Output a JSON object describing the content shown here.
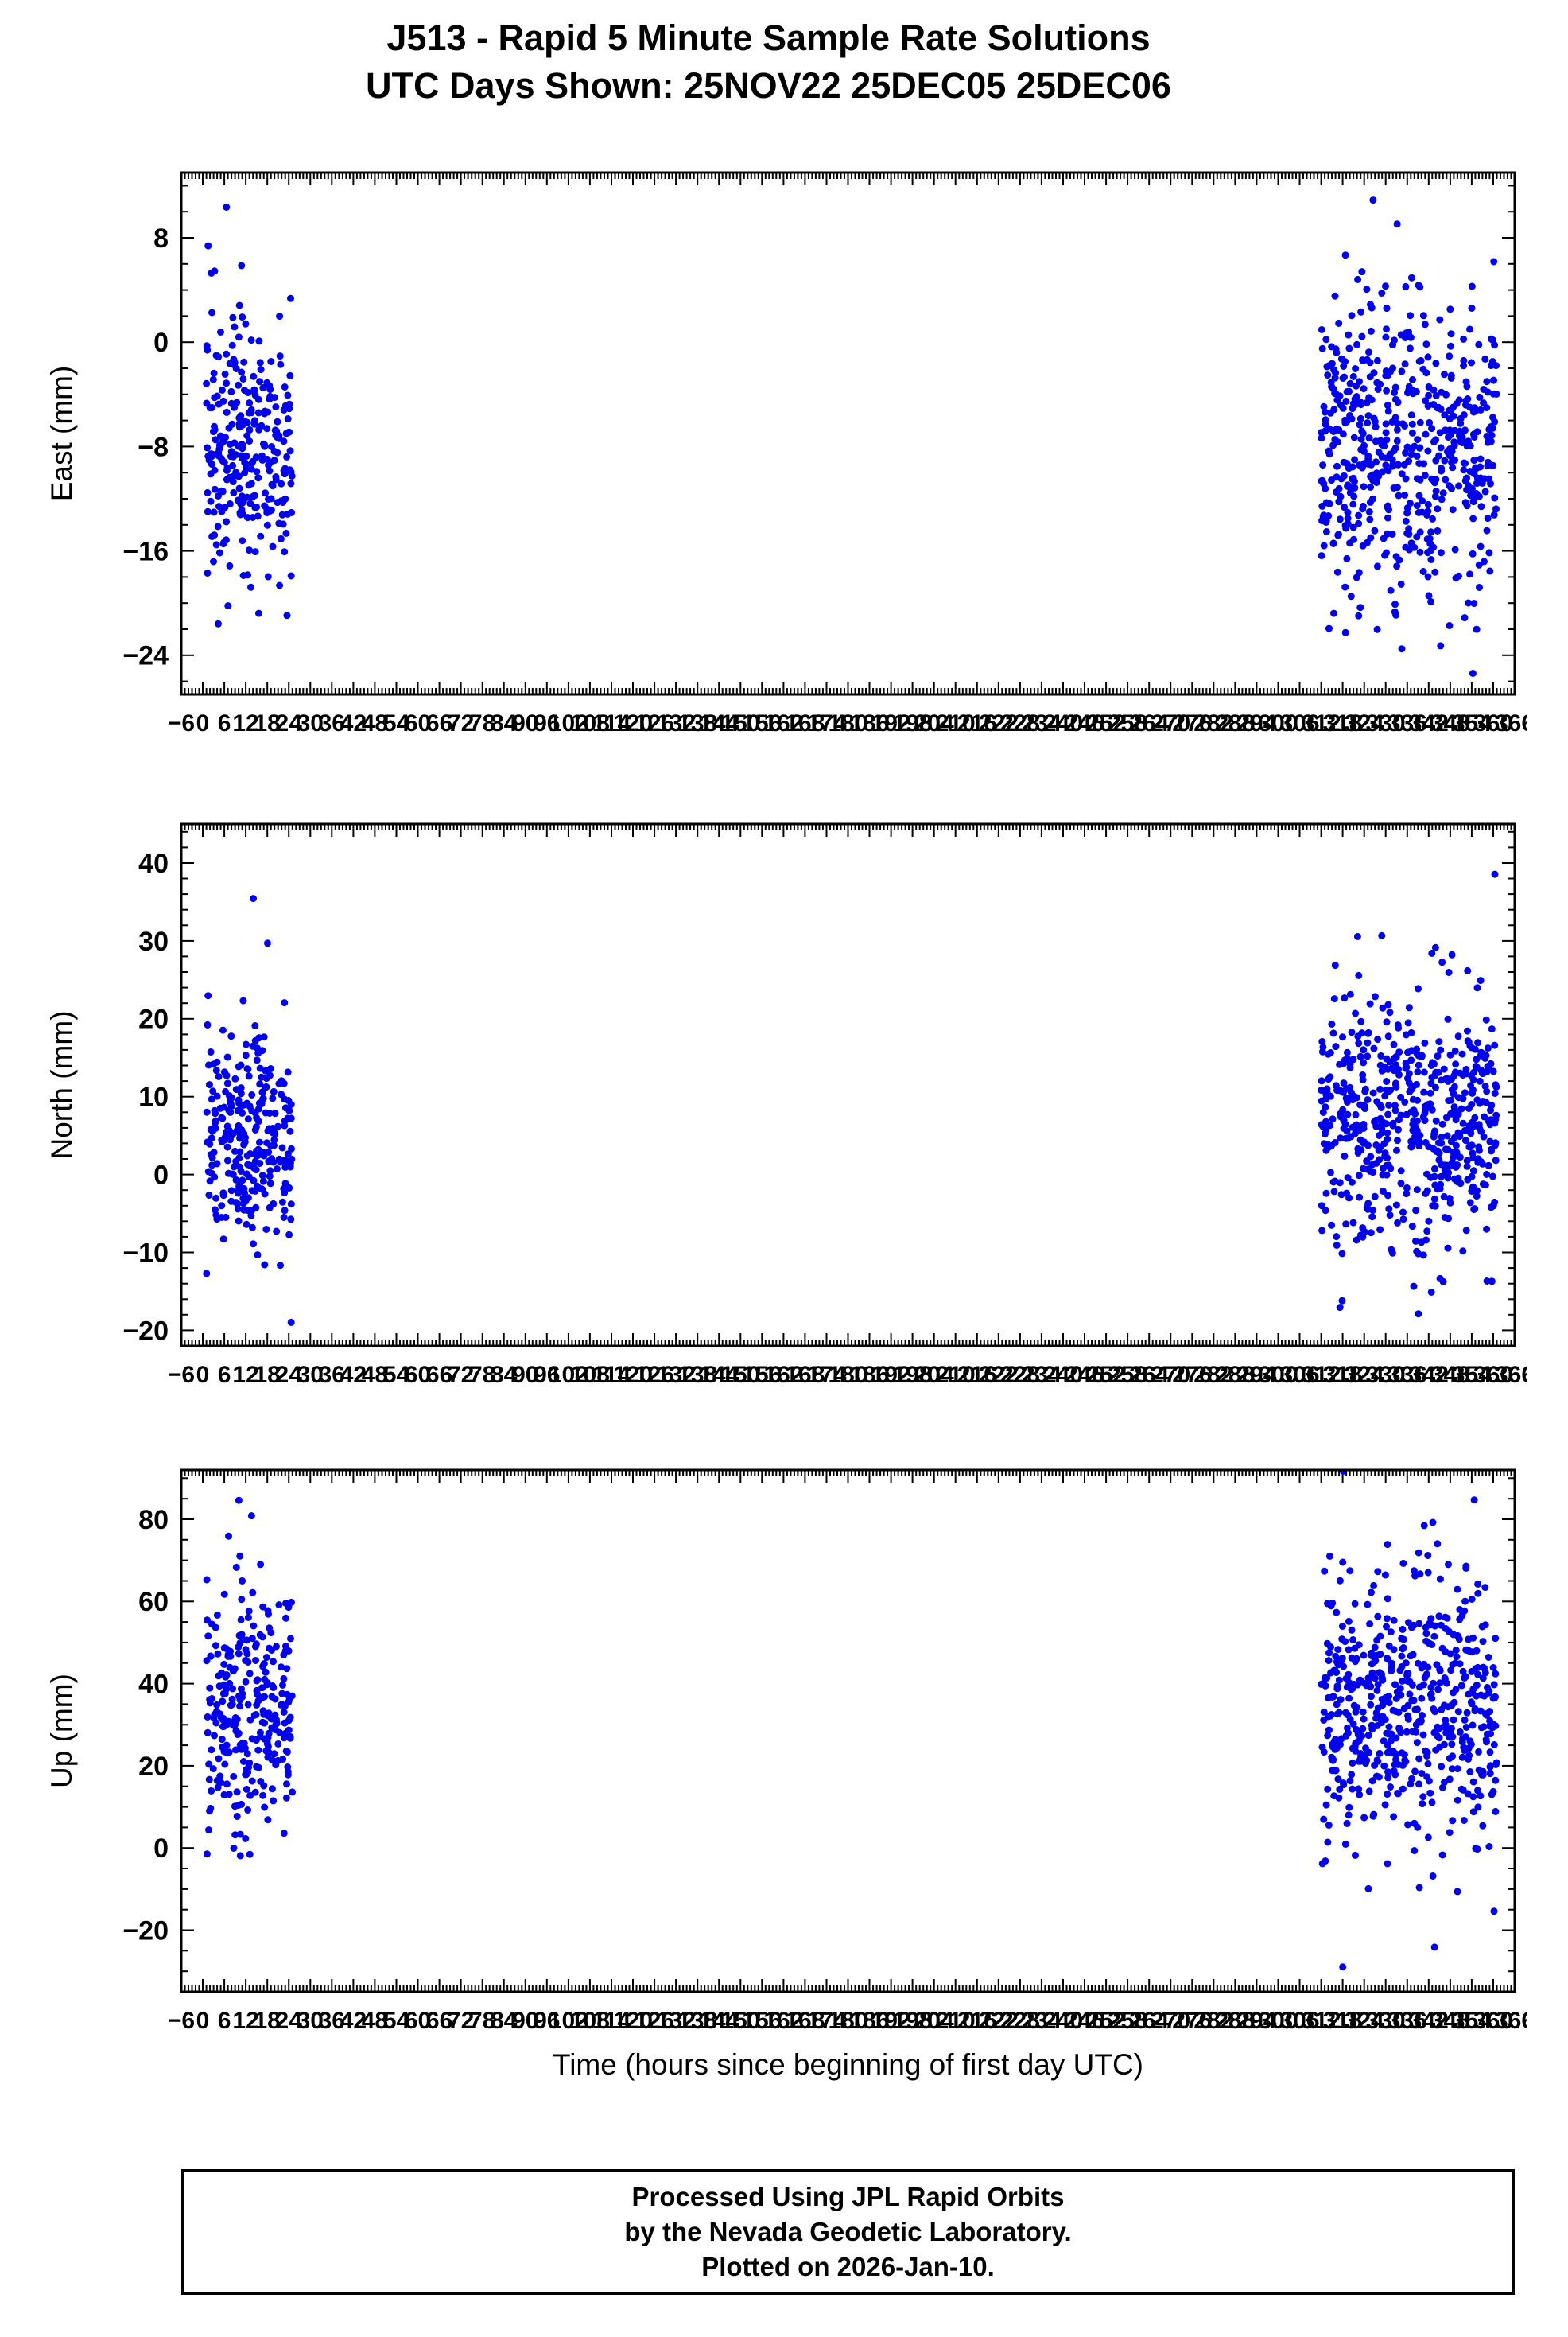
{
  "title_line1": "J513 - Rapid 5 Minute Sample Rate Solutions",
  "title_line2": "UTC Days Shown:  25NOV22 25DEC05 25DEC06",
  "xlabel": "Time (hours since beginning of first day UTC)",
  "footer": {
    "line1": "Processed Using JPL Rapid Orbits",
    "line2": "by the Nevada Geodetic Laboratory.",
    "line3": "Plotted on 2026-Jan-10."
  },
  "chart_data": {
    "type": "scatter",
    "title": "J513 - Rapid 5 Minute Sample Rate Solutions",
    "subtitle": "UTC Days Shown:  25NOV22 25DEC05 25DEC06",
    "point_color": "#0000ee",
    "grid": false,
    "legend": "none",
    "x_axis": {
      "label": "Time (hours since beginning of first day UTC)",
      "min": -6,
      "max": 366,
      "major_tick": 6,
      "minor_tick": 1,
      "days_shown": [
        "25NOV22",
        "25DEC05",
        "25DEC06"
      ],
      "cluster_hours": [
        [
          0,
          24
        ],
        [
          312,
          360
        ]
      ]
    },
    "panels": [
      {
        "name": "east",
        "ylabel": "East (mm)",
        "ylim": [
          -27,
          13
        ],
        "tick_start": -24,
        "major_tick": 8,
        "minor_tick": 2,
        "clusters": [
          {
            "x_range": [
              1,
              25
            ],
            "n": 285,
            "y_mean": -8.5,
            "y_std": 4.6,
            "tail_p": 0.07,
            "tail_mult": 2.0,
            "seed": 11
          },
          {
            "x_range": [
              312,
              361
            ],
            "n": 570,
            "y_mean": -8.0,
            "y_std": 5.2,
            "tail_p": 0.08,
            "tail_mult": 2.1,
            "seed": 12
          }
        ]
      },
      {
        "name": "north",
        "ylabel": "North (mm)",
        "ylim": [
          -22,
          45
        ],
        "tick_start": -20,
        "major_tick": 10,
        "minor_tick": 2,
        "clusters": [
          {
            "x_range": [
              1,
              25
            ],
            "n": 285,
            "y_mean": 4.5,
            "y_std": 7.0,
            "tail_p": 0.07,
            "tail_mult": 2.0,
            "seed": 21
          },
          {
            "x_range": [
              312,
              361
            ],
            "n": 570,
            "y_mean": 7.0,
            "y_std": 7.2,
            "tail_p": 0.08,
            "tail_mult": 2.1,
            "seed": 22
          }
        ]
      },
      {
        "name": "up",
        "ylabel": "Up (mm)",
        "ylim": [
          -35,
          92
        ],
        "tick_start": -20,
        "major_tick": 20,
        "minor_tick": 5,
        "clusters": [
          {
            "x_range": [
              1,
              25
            ],
            "n": 285,
            "y_mean": 34,
            "y_std": 15,
            "tail_p": 0.07,
            "tail_mult": 2.0,
            "seed": 31
          },
          {
            "x_range": [
              312,
              361
            ],
            "n": 570,
            "y_mean": 33,
            "y_std": 15,
            "tail_p": 0.08,
            "tail_mult": 2.1,
            "seed": 32
          }
        ]
      }
    ]
  }
}
